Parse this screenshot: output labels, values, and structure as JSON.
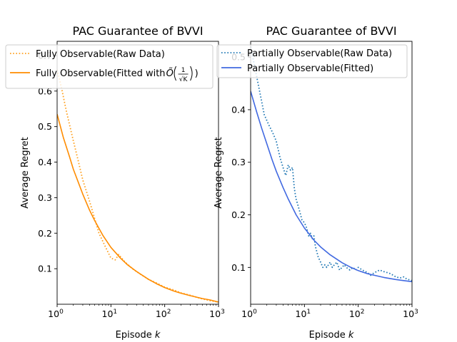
{
  "chart_data": [
    {
      "type": "line",
      "title": "PAC Guarantee of BVVI",
      "xlabel": "Episode",
      "xlabel_var": "k",
      "ylabel": "Average Regret",
      "xscale": "log",
      "xlim": [
        1,
        1000
      ],
      "ylim": [
        0,
        0.74
      ],
      "x_ticks": [
        {
          "base": "10",
          "exp": "0"
        },
        {
          "base": "10",
          "exp": "1"
        },
        {
          "base": "10",
          "exp": "2"
        },
        {
          "base": "10",
          "exp": "3"
        }
      ],
      "y_ticks": [
        "0.1",
        "0.2",
        "0.3",
        "0.4",
        "0.5",
        "0.6",
        "0.7"
      ],
      "legend": "top-left",
      "series": [
        {
          "name": "Fully Observable(Raw Data)",
          "style": "dotted",
          "color": "#ff9f1c",
          "x": [
            1,
            1.2,
            1.5,
            2,
            2.5,
            3,
            4,
            5,
            6,
            8,
            10,
            12,
            14,
            18,
            25,
            35,
            50,
            70,
            100,
            150,
            200,
            300,
            500,
            700,
            1000
          ],
          "y": [
            0.66,
            0.61,
            0.54,
            0.46,
            0.4,
            0.35,
            0.29,
            0.24,
            0.2,
            0.16,
            0.13,
            0.125,
            0.14,
            0.12,
            0.1,
            0.085,
            0.07,
            0.06,
            0.048,
            0.04,
            0.032,
            0.025,
            0.015,
            0.01,
            0.006
          ]
        },
        {
          "name": "Fully Observable(Fitted with ",
          "name_math_prefix": "Õ",
          "name_frac_num": "1",
          "name_frac_den": "√K",
          "name_suffix": ")",
          "style": "solid",
          "color": "#ff8c00",
          "x": [
            1,
            1.3,
            1.7,
            2,
            3,
            4,
            5,
            7,
            10,
            15,
            20,
            30,
            50,
            70,
            100,
            150,
            200,
            300,
            500,
            700,
            1000
          ],
          "y": [
            0.535,
            0.47,
            0.415,
            0.38,
            0.31,
            0.265,
            0.235,
            0.195,
            0.16,
            0.13,
            0.112,
            0.092,
            0.07,
            0.058,
            0.047,
            0.037,
            0.031,
            0.024,
            0.016,
            0.012,
            0.006
          ]
        }
      ]
    },
    {
      "type": "line",
      "title": "PAC Guarantee of BVVI",
      "xlabel": "Episode",
      "xlabel_var": "k",
      "ylabel": "Average Regret",
      "xscale": "log",
      "xlim": [
        1,
        1000
      ],
      "ylim": [
        0.03,
        0.53
      ],
      "x_ticks": [
        {
          "base": "10",
          "exp": "0"
        },
        {
          "base": "10",
          "exp": "1"
        },
        {
          "base": "10",
          "exp": "2"
        },
        {
          "base": "10",
          "exp": "3"
        }
      ],
      "y_ticks": [
        "0.1",
        "0.2",
        "0.3",
        "0.4",
        "0.5"
      ],
      "legend": "top-left",
      "series": [
        {
          "name": "Partially Observable(Raw Data)",
          "style": "dotted",
          "color": "#1f77b4",
          "x": [
            1,
            1.2,
            1.5,
            1.8,
            2.2,
            2.6,
            3.0,
            3.5,
            4.0,
            4.5,
            5.0,
            5.5,
            6.0,
            6.5,
            7.0,
            8.0,
            9.0,
            10,
            11,
            12,
            13,
            14,
            15,
            16,
            18,
            20,
            22,
            24,
            26,
            28,
            30,
            33,
            36,
            40,
            45,
            50,
            55,
            60,
            70,
            80,
            90,
            100,
            120,
            150,
            170,
            200,
            250,
            300,
            350,
            400,
            500,
            600,
            700,
            800,
            1000
          ],
          "y": [
            0.52,
            0.48,
            0.43,
            0.39,
            0.37,
            0.355,
            0.34,
            0.31,
            0.29,
            0.275,
            0.295,
            0.285,
            0.29,
            0.25,
            0.23,
            0.21,
            0.19,
            0.185,
            0.175,
            0.16,
            0.165,
            0.155,
            0.16,
            0.14,
            0.12,
            0.11,
            0.1,
            0.105,
            0.1,
            0.105,
            0.11,
            0.1,
            0.105,
            0.11,
            0.095,
            0.1,
            0.105,
            0.1,
            0.095,
            0.1,
            0.095,
            0.1,
            0.095,
            0.09,
            0.085,
            0.09,
            0.095,
            0.092,
            0.09,
            0.088,
            0.082,
            0.08,
            0.082,
            0.078,
            0.075
          ]
        },
        {
          "name": "Partially Observable(Fitted)",
          "style": "solid",
          "color": "#4169e1",
          "x": [
            1,
            1.3,
            1.6,
            2,
            2.5,
            3,
            4,
            5,
            7,
            10,
            15,
            20,
            30,
            50,
            70,
            100,
            150,
            200,
            300,
            500,
            700,
            1000
          ],
          "y": [
            0.435,
            0.395,
            0.365,
            0.335,
            0.305,
            0.283,
            0.252,
            0.23,
            0.2,
            0.175,
            0.152,
            0.139,
            0.124,
            0.109,
            0.101,
            0.094,
            0.088,
            0.085,
            0.081,
            0.077,
            0.075,
            0.073
          ]
        }
      ]
    }
  ]
}
